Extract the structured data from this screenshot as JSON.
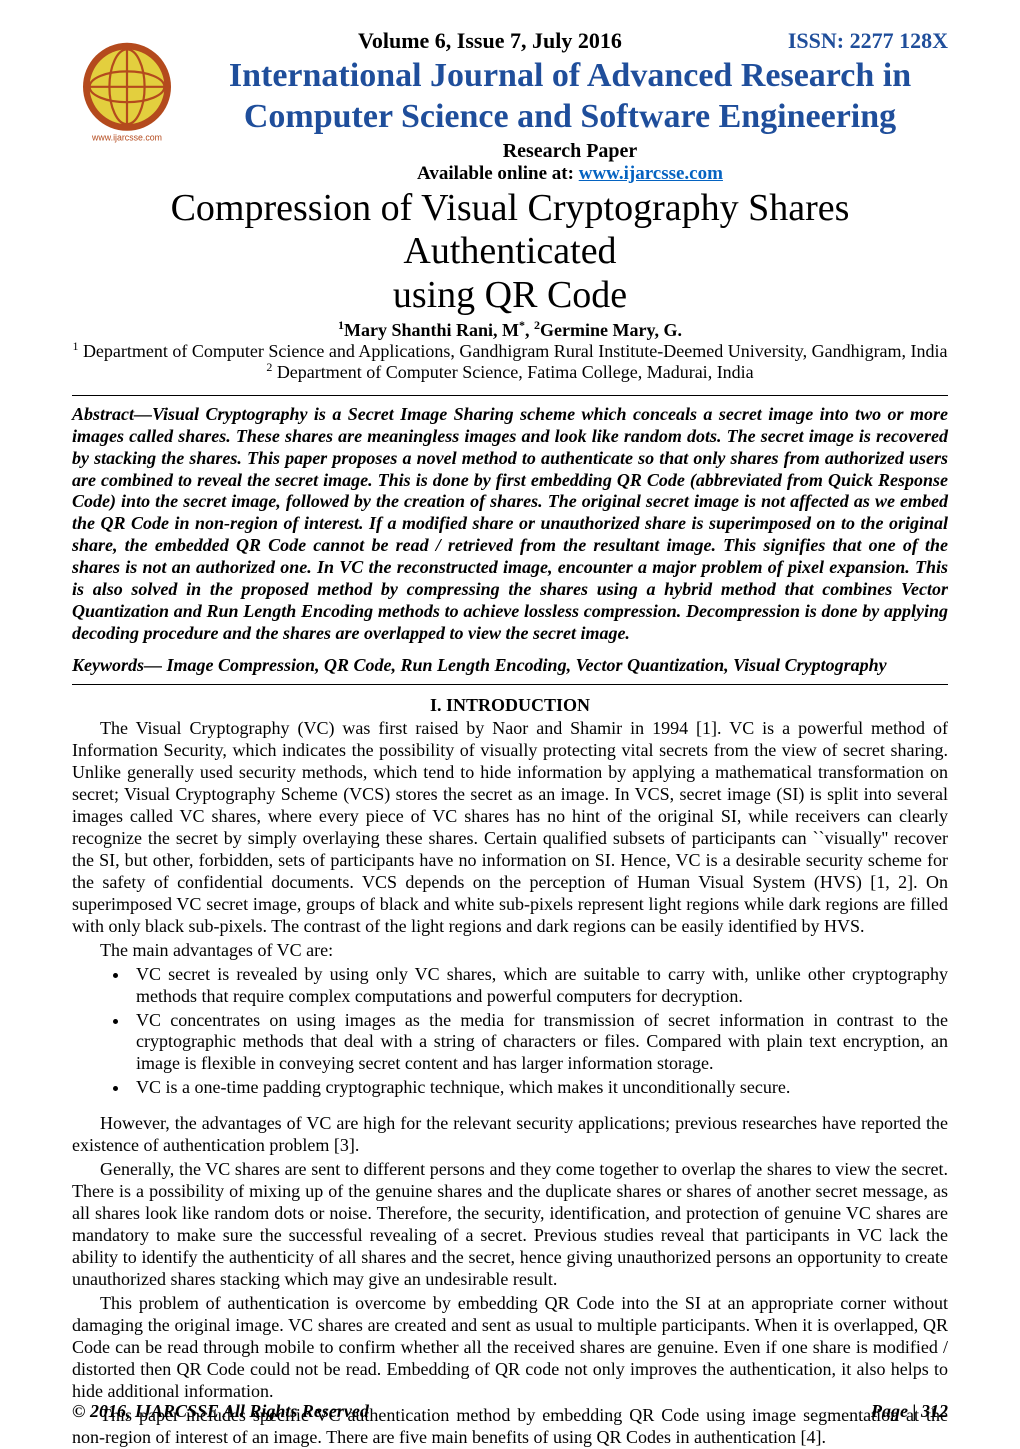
{
  "masthead": {
    "volume_issue": "Volume 6, Issue 7, July 2016",
    "issn": "ISSN: 2277 128X",
    "journal_title_l1": "International Journal of Advanced Research in",
    "journal_title_l2": "Computer Science and Software Engineering",
    "subtitle": "Research Paper",
    "available_prefix": "Available online at: ",
    "available_url_text": "www.ijarcsse.com",
    "logo_caption": "www.ijarcsse.com",
    "logo_colors": {
      "globe": "#e3cf3e",
      "inner": "#ffffff",
      "ring": "#b44a1d"
    }
  },
  "paper": {
    "title_l1": "Compression of Visual Cryptography Shares Authenticated",
    "title_l2": "using QR Code",
    "authors_html": "<sup>1</sup>Mary Shanthi Rani, M<sup>*</sup>, <sup>2</sup>Germine Mary, G.",
    "affil1_html": "<sup>1</sup> Department of Computer Science and Applications, Gandhigram Rural Institute-Deemed University, Gandhigram, India",
    "affil2_html": "<sup>2</sup> Department of Computer Science, Fatima College, Madurai, India"
  },
  "abstract": {
    "label": "Abstract—",
    "text": "Visual Cryptography is a Secret Image Sharing scheme which conceals a secret image into two or more images called shares. These shares are meaningless images and look like random dots.  The secret image is recovered by stacking the shares. This paper proposes a novel method to authenticate so that only shares from authorized users are combined to reveal the secret image. This is done by first embedding QR Code (abbreviated from Quick Response Code) into the secret image, followed by the creation of shares. The original secret image is not affected as we embed the QR Code in non-region of interest. If a modified share or unauthorized share is superimposed on to the original share, the embedded QR Code cannot be read / retrieved from the resultant image. This signifies that one of the shares is not an authorized one. In VC the reconstructed image,   encounter a major problem of pixel expansion. This is also solved in the proposed method by compressing the shares using a hybrid method that combines Vector Quantization and Run Length Encoding methods to achieve lossless compression. Decompression is done by applying decoding procedure and the shares are overlapped to view the secret image."
  },
  "keywords": {
    "label": "Keywords— ",
    "text": "Image Compression, QR Code, Run Length Encoding, Vector Quantization, Visual Cryptography"
  },
  "section_intro_heading": "I.   INTRODUCTION",
  "intro": {
    "p1": "The Visual Cryptography (VC) was first raised by Naor and Shamir in 1994 [1]. VC is a powerful method of Information Security, which indicates the possibility of visually protecting vital secrets from the view of secret sharing. Unlike generally used security methods, which tend to hide information by applying a mathematical transformation on secret; Visual Cryptography Scheme (VCS) stores the secret as an image. In VCS, secret image (SI) is split into several images called VC shares, where every piece of VC shares has no hint of the original SI, while receivers can clearly recognize the secret by simply overlaying these shares. Certain qualified subsets of participants can ``visually'' recover the SI, but other, forbidden, sets of participants have no information on SI. Hence, VC is a desirable security scheme for the safety of confidential documents. VCS depends on the perception of Human Visual System (HVS) [1, 2]. On superimposed VC secret image, groups of black and white sub-pixels represent light regions while dark regions are filled with only black sub-pixels. The contrast of the light regions and dark regions can be easily identified by HVS.",
    "adv_lead": "The main advantages of VC are:",
    "bullets": [
      "VC secret is revealed by using only VC shares, which are suitable to carry with, unlike other cryptography methods that require complex computations and powerful computers for decryption.",
      "VC concentrates on using images as the media for transmission of secret information in contrast to the cryptographic methods that deal with a string of characters or files. Compared with plain text encryption, an image is flexible in conveying secret content and has larger information storage.",
      "VC is a one-time padding cryptographic technique, which makes it unconditionally secure."
    ],
    "p2": "However, the advantages of VC are high for the relevant security applications; previous researches have reported the existence of authentication problem [3].",
    "p3": "Generally, the VC shares are sent to different persons and they come together to overlap the shares to view the secret. There is a possibility of mixing up of the genuine shares and the duplicate shares or shares of another secret message, as all shares look like random dots or noise. Therefore, the security, identification, and protection of genuine VC shares are mandatory to make sure the successful revealing of a secret. Previous studies reveal that participants in VC lack the ability to identify the authenticity of all shares and the secret, hence giving unauthorized persons an opportunity to create unauthorized shares stacking which may give an undesirable result.",
    "p4": "This problem of authentication is overcome by embedding QR Code into the SI at an appropriate corner without damaging the original image. VC shares are created and sent as usual to multiple participants. When it is overlapped, QR Code can be read through mobile to confirm whether all the received shares are genuine. Even if one share is modified / distorted then QR Code could not be read. Embedding of QR code not only improves the authentication, it also helps to hide additional information.",
    "p5": "This paper includes specific VC authentication method by embedding QR Code using image segmentation at the non-region of interest of an image. There are five main benefits of using QR Codes in authentication [4]."
  },
  "footer": {
    "left": "© 2016, IJARCSSE All Rights Reserved",
    "right": "Page | 312"
  }
}
